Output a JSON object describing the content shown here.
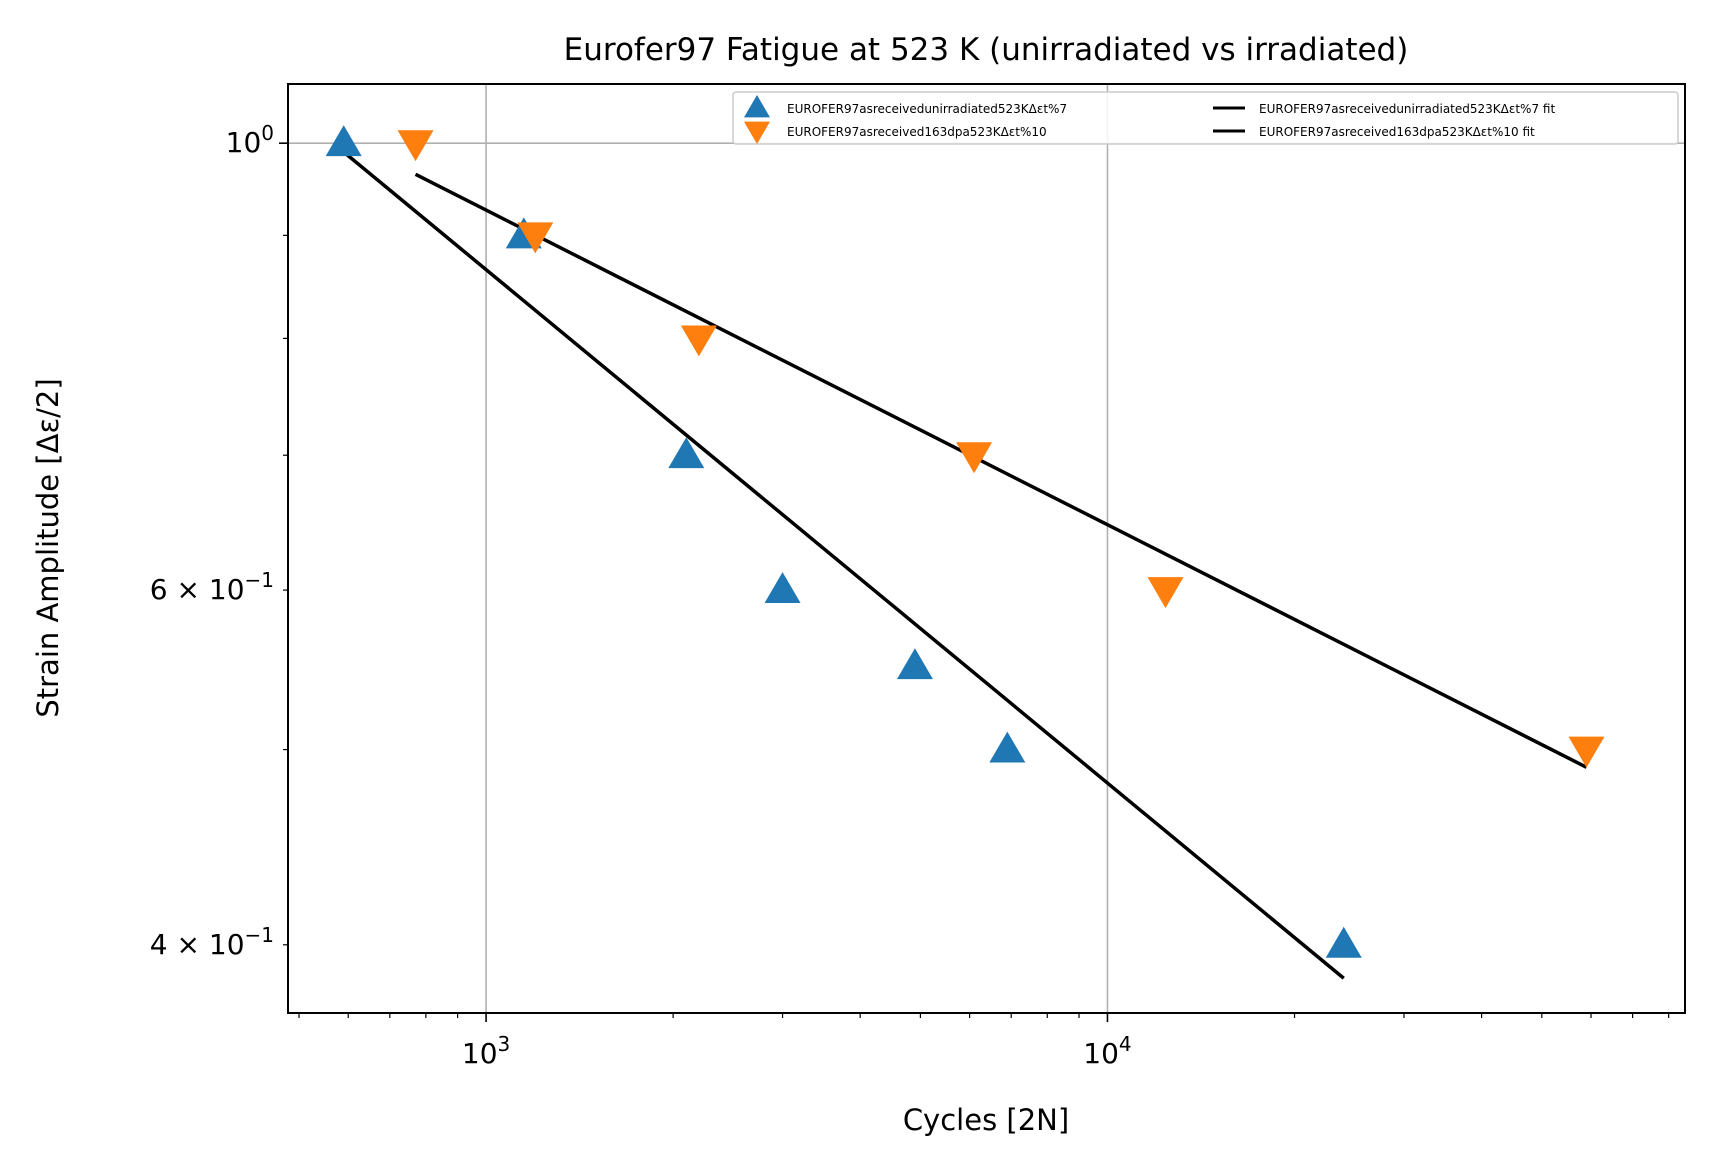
{
  "chart_data": {
    "type": "scatter",
    "title": "Eurofer97 Fatigue at 523 K (unirradiated vs irradiated)",
    "xlabel": "Cycles [2N]",
    "ylabel": "Strain Amplitude [Δε/2]",
    "xscale": "log",
    "yscale": "log",
    "xlim": [
      480,
      85000
    ],
    "ylim": [
      0.37,
      1.07
    ],
    "grid": true,
    "legend_position": "top-right",
    "x_major_ticks": [
      {
        "value": 1000,
        "base": "10",
        "exp": "3"
      },
      {
        "value": 10000,
        "base": "10",
        "exp": "4"
      }
    ],
    "y_ticks": [
      {
        "value": 1.0,
        "mantissa": "",
        "base": "10",
        "exp": "0"
      },
      {
        "value": 0.6,
        "mantissa": "6 × ",
        "base": "10",
        "exp": "−1"
      },
      {
        "value": 0.4,
        "mantissa": "4 × ",
        "base": "10",
        "exp": "−1"
      }
    ],
    "series": [
      {
        "name": "EUROFER97asreceivedunirradiated523KΔεt%7",
        "marker": "triangle-up",
        "color": "#1f77b4",
        "points": [
          {
            "x": 590,
            "y": 1.0
          },
          {
            "x": 1150,
            "y": 0.9
          },
          {
            "x": 2100,
            "y": 0.7
          },
          {
            "x": 3000,
            "y": 0.6
          },
          {
            "x": 4900,
            "y": 0.55
          },
          {
            "x": 6900,
            "y": 0.5
          },
          {
            "x": 24000,
            "y": 0.4
          }
        ]
      },
      {
        "name": "EUROFER97asreceived163dpa523KΔεt%10",
        "marker": "triangle-down",
        "color": "#ff7f0e",
        "points": [
          {
            "x": 770,
            "y": 1.0
          },
          {
            "x": 1200,
            "y": 0.9
          },
          {
            "x": 2200,
            "y": 0.8
          },
          {
            "x": 6100,
            "y": 0.7
          },
          {
            "x": 12400,
            "y": 0.6
          },
          {
            "x": 59000,
            "y": 0.5
          }
        ]
      }
    ],
    "fits": [
      {
        "name": "EUROFER97asreceivedunirradiated523KΔεt%7 fit",
        "color": "#000000",
        "points": [
          {
            "x": 590,
            "y": 0.99
          },
          {
            "x": 24000,
            "y": 0.385
          }
        ]
      },
      {
        "name": "EUROFER97asreceived163dpa523KΔεt%10 fit",
        "color": "#000000",
        "points": [
          {
            "x": 770,
            "y": 0.965
          },
          {
            "x": 59000,
            "y": 0.49
          }
        ]
      }
    ]
  }
}
